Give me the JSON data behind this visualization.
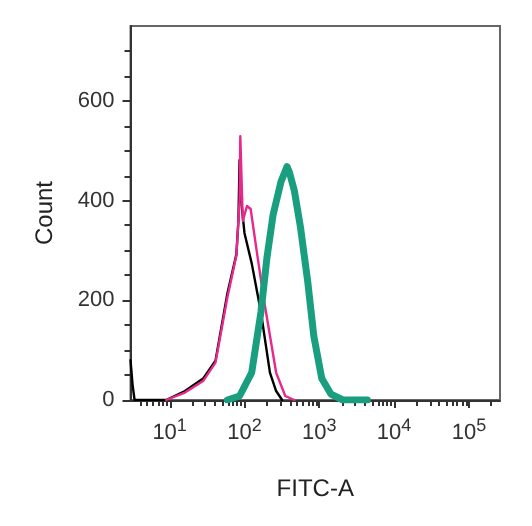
{
  "chart_data": {
    "type": "line",
    "xlabel": "FITC-A",
    "ylabel": "Count",
    "log": "x",
    "grid": false,
    "marker": "none",
    "line_style": "solid",
    "xlim": [
      3,
      260000
    ],
    "ylim": [
      0,
      750
    ],
    "xticks": [
      {
        "value": 10,
        "label": "10$^{1}$"
      },
      {
        "value": 100,
        "label": "10$^{2}$"
      },
      {
        "value": 1000,
        "label": "10$^{3}$"
      },
      {
        "value": 10000,
        "label": "10$^{4}$"
      },
      {
        "value": 100000,
        "label": "10$^{5}$"
      }
    ],
    "yticks": [
      0,
      200,
      400,
      600
    ],
    "series": [
      {
        "color": "#000000",
        "x": [
          3,
          3.2,
          3.4,
          9,
          16,
          28,
          41,
          59,
          78,
          83,
          86,
          91,
          100,
          125,
          166,
          219,
          265,
          319
        ],
        "values": [
          80,
          30,
          0,
          0,
          18,
          43,
          79,
          213,
          292,
          359,
          481,
          396,
          335,
          274,
          176,
          55,
          18,
          0
        ]
      },
      {
        "color": "#e8288c",
        "x": [
          9,
          16,
          28,
          41,
          59,
          78,
          86,
          88,
          95,
          108,
          121,
          146,
          182,
          265,
          351,
          464
        ],
        "values": [
          0,
          15,
          38,
          75,
          205,
          290,
          400,
          529,
          359,
          389,
          383,
          298,
          201,
          55,
          8,
          0
        ]
      },
      {
        "color": "#1a9e80",
        "x": [
          59,
          86,
          125,
          166,
          200,
          241,
          308,
          371,
          400,
          464,
          560,
          701,
          845,
          1080,
          1430,
          2070,
          4390
        ],
        "values": [
          0,
          8,
          55,
          176,
          286,
          371,
          438,
          468,
          456,
          420,
          347,
          237,
          128,
          43,
          12,
          0,
          0
        ]
      }
    ]
  }
}
